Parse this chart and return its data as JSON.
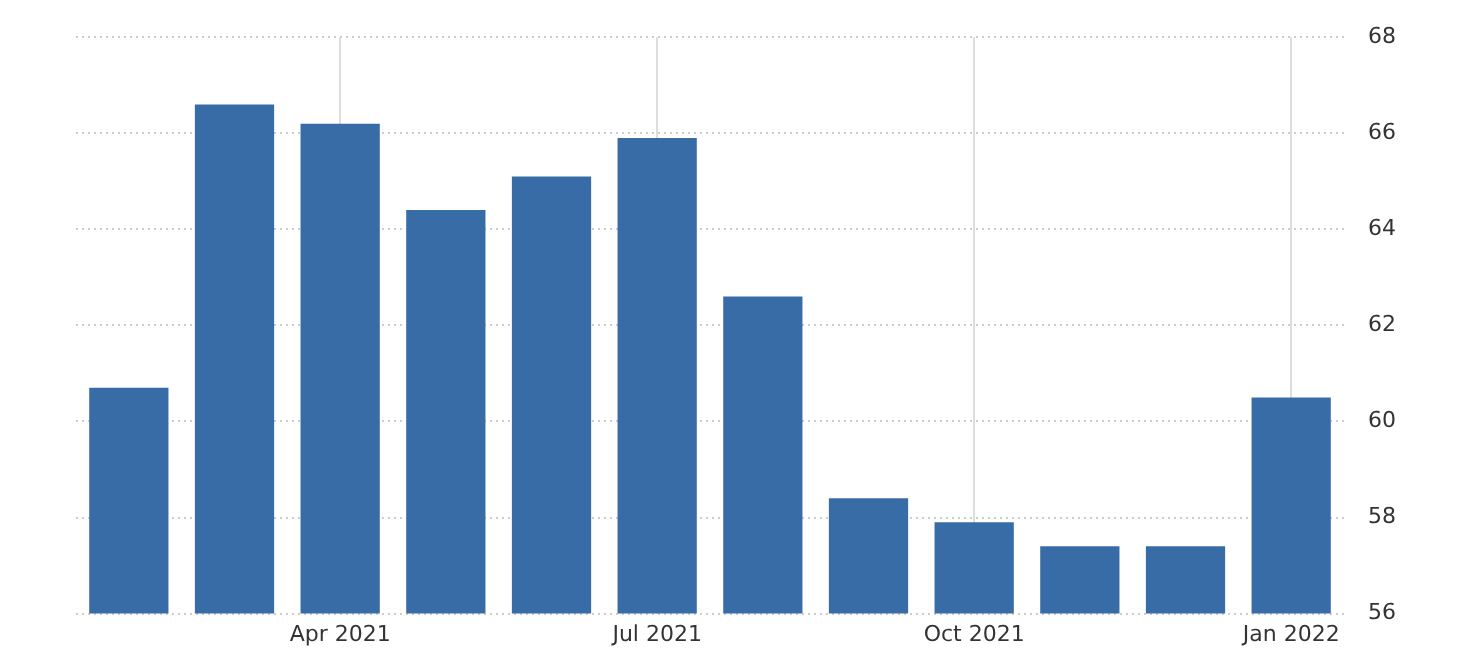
{
  "chart_data": {
    "type": "bar",
    "categories": [
      null,
      null,
      "Apr 2021",
      null,
      null,
      "Jul 2021",
      null,
      null,
      "Oct 2021",
      null,
      null,
      "Jan 2022"
    ],
    "values": [
      60.7,
      66.6,
      66.2,
      64.4,
      65.1,
      65.9,
      62.6,
      58.4,
      57.9,
      57.4,
      57.4,
      60.5
    ],
    "color": "#386ca6",
    "ylim": [
      56,
      68
    ],
    "yticks": [
      56,
      58,
      60,
      62,
      64,
      66,
      68
    ],
    "grid": true
  }
}
